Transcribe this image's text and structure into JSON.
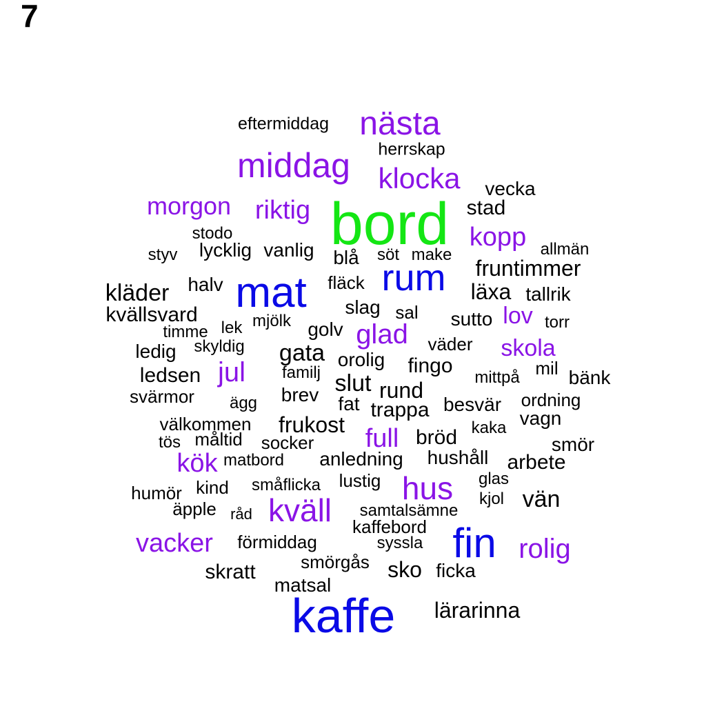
{
  "panel_label": "7",
  "colors": {
    "c0": "#000000",
    "c1": "#8a14e6",
    "c2": "#0a0ae6",
    "c3": "#14e614"
  },
  "words": [
    {
      "text": "bord",
      "color": "c3"
    },
    {
      "text": "mat",
      "color": "c2"
    },
    {
      "text": "kaffe",
      "color": "c2"
    },
    {
      "text": "fin",
      "color": "c2"
    },
    {
      "text": "rum",
      "color": "c2"
    },
    {
      "text": "nästa",
      "color": "c1"
    },
    {
      "text": "middag",
      "color": "c1"
    },
    {
      "text": "klocka",
      "color": "c1"
    },
    {
      "text": "morgon",
      "color": "c1"
    },
    {
      "text": "riktig",
      "color": "c1"
    },
    {
      "text": "kopp",
      "color": "c1"
    },
    {
      "text": "kväll",
      "color": "c1"
    },
    {
      "text": "hus",
      "color": "c1"
    },
    {
      "text": "vacker",
      "color": "c1"
    },
    {
      "text": "rolig",
      "color": "c1"
    },
    {
      "text": "glad",
      "color": "c1"
    },
    {
      "text": "jul",
      "color": "c1"
    },
    {
      "text": "skola",
      "color": "c1"
    },
    {
      "text": "kök",
      "color": "c1"
    },
    {
      "text": "full",
      "color": "c1"
    },
    {
      "text": "lov",
      "color": "c1"
    },
    {
      "text": "eftermiddag",
      "color": "c0"
    },
    {
      "text": "herrskap",
      "color": "c0"
    },
    {
      "text": "vecka",
      "color": "c0"
    },
    {
      "text": "stad",
      "color": "c0"
    },
    {
      "text": "stodo",
      "color": "c0"
    },
    {
      "text": "lycklig",
      "color": "c0"
    },
    {
      "text": "vanlig",
      "color": "c0"
    },
    {
      "text": "styv",
      "color": "c0"
    },
    {
      "text": "blå",
      "color": "c0"
    },
    {
      "text": "söt",
      "color": "c0"
    },
    {
      "text": "make",
      "color": "c0"
    },
    {
      "text": "allmän",
      "color": "c0"
    },
    {
      "text": "fruntimmer",
      "color": "c0"
    },
    {
      "text": "kläder",
      "color": "c0"
    },
    {
      "text": "halv",
      "color": "c0"
    },
    {
      "text": "fläck",
      "color": "c0"
    },
    {
      "text": "läxa",
      "color": "c0"
    },
    {
      "text": "tallrik",
      "color": "c0"
    },
    {
      "text": "kvällsvard",
      "color": "c0"
    },
    {
      "text": "slag",
      "color": "c0"
    },
    {
      "text": "sal",
      "color": "c0"
    },
    {
      "text": "sutto",
      "color": "c0"
    },
    {
      "text": "torr",
      "color": "c0"
    },
    {
      "text": "timme",
      "color": "c0"
    },
    {
      "text": "lek",
      "color": "c0"
    },
    {
      "text": "mjölk",
      "color": "c0"
    },
    {
      "text": "golv",
      "color": "c0"
    },
    {
      "text": "väder",
      "color": "c0"
    },
    {
      "text": "ledig",
      "color": "c0"
    },
    {
      "text": "skyldig",
      "color": "c0"
    },
    {
      "text": "gata",
      "color": "c0"
    },
    {
      "text": "orolig",
      "color": "c0"
    },
    {
      "text": "fingo",
      "color": "c0"
    },
    {
      "text": "mil",
      "color": "c0"
    },
    {
      "text": "ledsen",
      "color": "c0"
    },
    {
      "text": "familj",
      "color": "c0"
    },
    {
      "text": "mittpå",
      "color": "c0"
    },
    {
      "text": "bänk",
      "color": "c0"
    },
    {
      "text": "slut",
      "color": "c0"
    },
    {
      "text": "rund",
      "color": "c0"
    },
    {
      "text": "svärmor",
      "color": "c0"
    },
    {
      "text": "brev",
      "color": "c0"
    },
    {
      "text": "ägg",
      "color": "c0"
    },
    {
      "text": "fat",
      "color": "c0"
    },
    {
      "text": "besvär",
      "color": "c0"
    },
    {
      "text": "ordning",
      "color": "c0"
    },
    {
      "text": "trappa",
      "color": "c0"
    },
    {
      "text": "välkommen",
      "color": "c0"
    },
    {
      "text": "frukost",
      "color": "c0"
    },
    {
      "text": "vagn",
      "color": "c0"
    },
    {
      "text": "kaka",
      "color": "c0"
    },
    {
      "text": "tös",
      "color": "c0"
    },
    {
      "text": "måltid",
      "color": "c0"
    },
    {
      "text": "socker",
      "color": "c0"
    },
    {
      "text": "bröd",
      "color": "c0"
    },
    {
      "text": "smör",
      "color": "c0"
    },
    {
      "text": "matbord",
      "color": "c0"
    },
    {
      "text": "anledning",
      "color": "c0"
    },
    {
      "text": "hushåll",
      "color": "c0"
    },
    {
      "text": "arbete",
      "color": "c0"
    },
    {
      "text": "lustig",
      "color": "c0"
    },
    {
      "text": "glas",
      "color": "c0"
    },
    {
      "text": "humör",
      "color": "c0"
    },
    {
      "text": "kind",
      "color": "c0"
    },
    {
      "text": "småflicka",
      "color": "c0"
    },
    {
      "text": "kjol",
      "color": "c0"
    },
    {
      "text": "vän",
      "color": "c0"
    },
    {
      "text": "äpple",
      "color": "c0"
    },
    {
      "text": "råd",
      "color": "c0"
    },
    {
      "text": "samtalsämne",
      "color": "c0"
    },
    {
      "text": "kaffebord",
      "color": "c0"
    },
    {
      "text": "förmiddag",
      "color": "c0"
    },
    {
      "text": "syssla",
      "color": "c0"
    },
    {
      "text": "smörgås",
      "color": "c0"
    },
    {
      "text": "sko",
      "color": "c0"
    },
    {
      "text": "ficka",
      "color": "c0"
    },
    {
      "text": "skratt",
      "color": "c0"
    },
    {
      "text": "matsal",
      "color": "c0"
    },
    {
      "text": "lärarinna",
      "color": "c0"
    }
  ]
}
